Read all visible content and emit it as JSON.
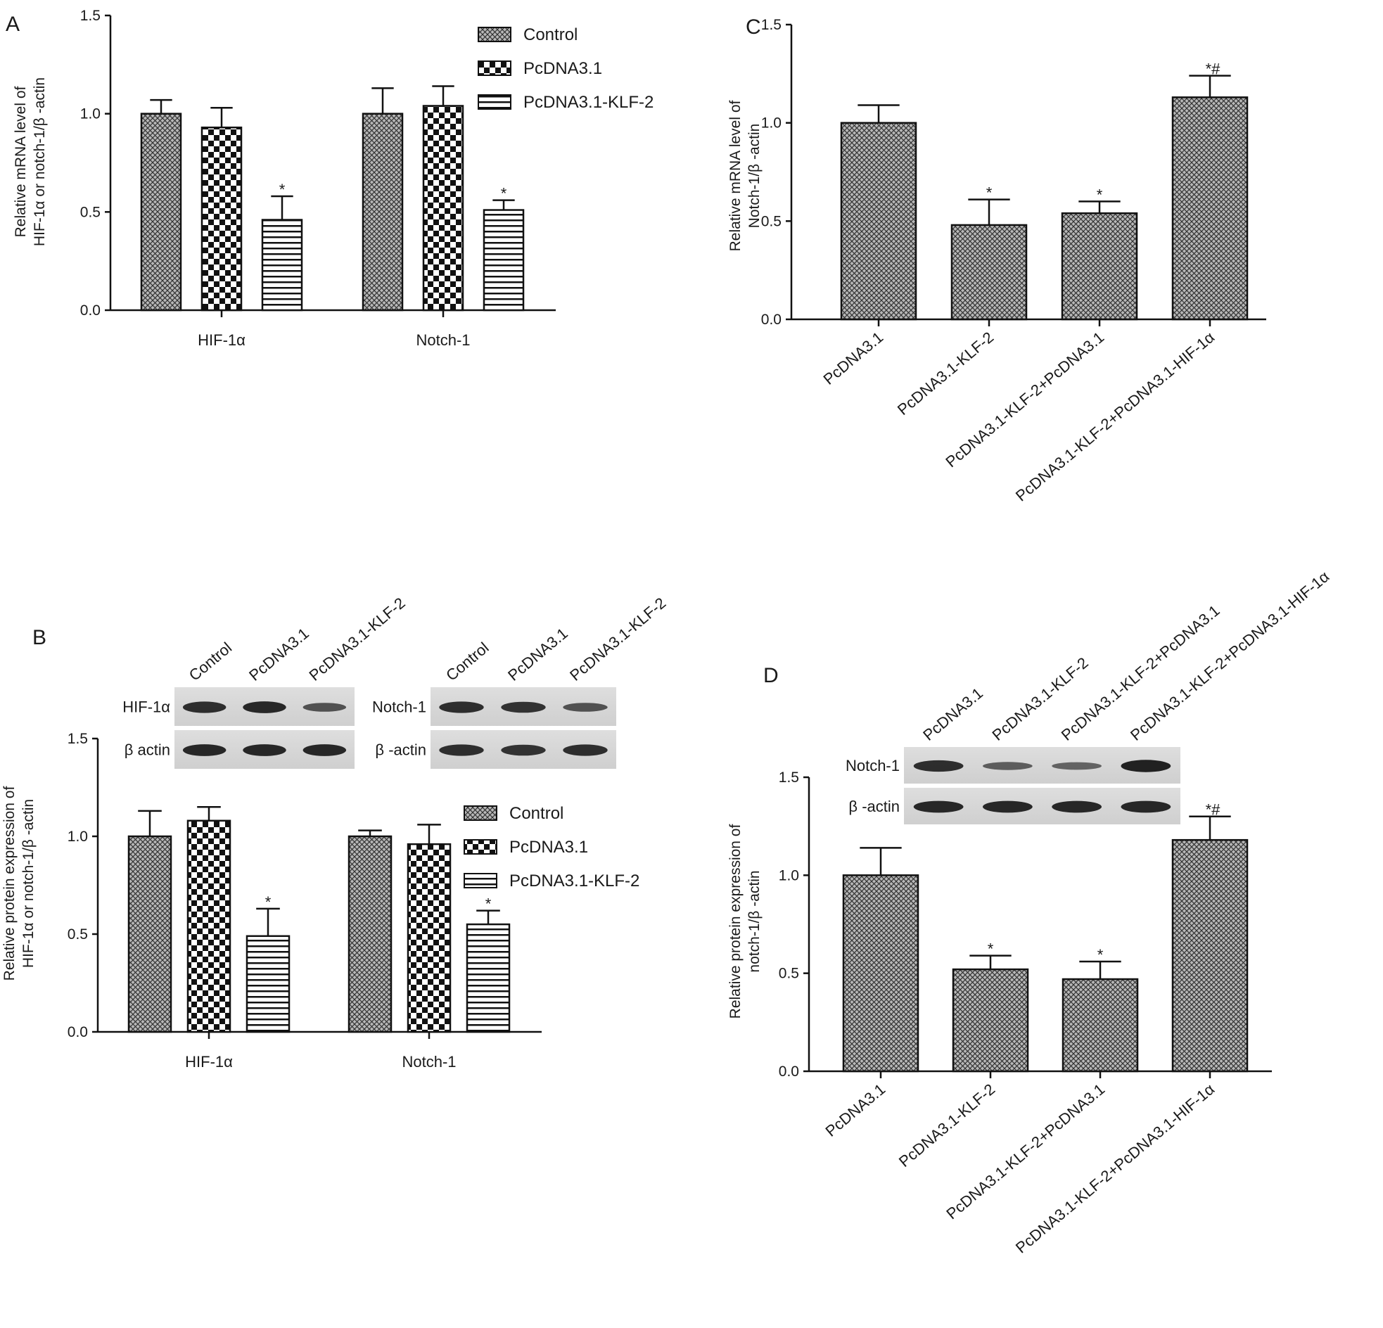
{
  "chart_data": [
    {
      "panel": "A",
      "type": "bar",
      "ylabel": [
        "Relative mRNA level of",
        "HIF-1α or notch-1/β -actin"
      ],
      "ylim": [
        0,
        1.5
      ],
      "yticks": [
        "0.0",
        "0.5",
        "1.0",
        "1.5"
      ],
      "categories": [
        "HIF-1α",
        "Notch-1"
      ],
      "legend_position": "top-right",
      "series": [
        {
          "name": "Control",
          "values": [
            1.0,
            1.0
          ],
          "errors": [
            0.07,
            0.13
          ],
          "marks": [
            "",
            ""
          ],
          "pattern": "fine"
        },
        {
          "name": "PcDNA3.1",
          "values": [
            0.93,
            1.04
          ],
          "errors": [
            0.1,
            0.1
          ],
          "marks": [
            "",
            ""
          ],
          "pattern": "checker"
        },
        {
          "name": "PcDNA3.1-KLF-2",
          "values": [
            0.46,
            0.51
          ],
          "errors": [
            0.12,
            0.05
          ],
          "marks": [
            "*",
            "*"
          ],
          "pattern": "hstripe"
        }
      ]
    },
    {
      "panel": "C",
      "type": "bar",
      "ylabel": [
        "Relative mRNA level of",
        "Notch-1/β -actin"
      ],
      "ylim": [
        0,
        1.5
      ],
      "yticks": [
        "0.0",
        "0.5",
        "1.0",
        "1.5"
      ],
      "categories": [
        "PcDNA3.1",
        "PcDNA3.1-KLF-2",
        "PcDNA3.1-KLF-2+PcDNA3.1",
        "PcDNA3.1-KLF-2+PcDNA3.1-HIF-1α"
      ],
      "values": [
        1.0,
        0.48,
        0.54,
        1.13
      ],
      "errors": [
        0.09,
        0.13,
        0.06,
        0.11
      ],
      "marks": [
        "",
        "*",
        "*",
        "*#"
      ]
    },
    {
      "panel": "B",
      "type": "bar",
      "ylabel": [
        "Relative protein expression of",
        "HIF-1α or notch-1/β -actin"
      ],
      "ylim": [
        0,
        1.5
      ],
      "yticks": [
        "0.0",
        "0.5",
        "1.0",
        "1.5"
      ],
      "categories": [
        "HIF-1α",
        "Notch-1"
      ],
      "legend_position": "right",
      "series": [
        {
          "name": "Control",
          "values": [
            1.0,
            1.0
          ],
          "errors": [
            0.13,
            0.03
          ],
          "marks": [
            "",
            ""
          ],
          "pattern": "fine"
        },
        {
          "name": "PcDNA3.1",
          "values": [
            1.08,
            0.96
          ],
          "errors": [
            0.07,
            0.1
          ],
          "marks": [
            "",
            ""
          ],
          "pattern": "checker"
        },
        {
          "name": "PcDNA3.1-KLF-2",
          "values": [
            0.49,
            0.55
          ],
          "errors": [
            0.14,
            0.07
          ],
          "marks": [
            "*",
            "*"
          ],
          "pattern": "hstripe"
        }
      ],
      "blots": [
        {
          "lanes": [
            "Control",
            "PcDNA3.1",
            "PcDNA3.1-KLF-2"
          ],
          "rows": [
            {
              "label": "HIF-1α",
              "intensity": [
                0.85,
                0.9,
                0.55
              ]
            },
            {
              "label": "β actin",
              "intensity": [
                0.9,
                0.9,
                0.9
              ]
            }
          ]
        },
        {
          "lanes": [
            "Control",
            "PcDNA3.1",
            "PcDNA3.1-KLF-2"
          ],
          "rows": [
            {
              "label": "Notch-1",
              "intensity": [
                0.85,
                0.8,
                0.55
              ]
            },
            {
              "label": "β -actin",
              "intensity": [
                0.85,
                0.8,
                0.85
              ]
            }
          ]
        }
      ]
    },
    {
      "panel": "D",
      "type": "bar",
      "ylabel": [
        "Relative protein expression of",
        "notch-1/β -actin"
      ],
      "ylim": [
        0,
        1.5
      ],
      "yticks": [
        "0.0",
        "0.5",
        "1.0",
        "1.5"
      ],
      "categories": [
        "PcDNA3.1",
        "PcDNA3.1-KLF-2",
        "PcDNA3.1-KLF-2+PcDNA3.1",
        "PcDNA3.1-KLF-2+PcDNA3.1-HIF-1α"
      ],
      "values": [
        1.0,
        0.52,
        0.47,
        1.18
      ],
      "errors": [
        0.14,
        0.07,
        0.09,
        0.12
      ],
      "marks": [
        "",
        "*",
        "*",
        "*#"
      ],
      "blots": [
        {
          "lanes": [
            "PcDNA3.1",
            "PcDNA3.1-KLF-2",
            "PcDNA3.1-KLF-2+PcDNA3.1",
            "PcDNA3.1-KLF-2+PcDNA3.1-HIF-1α"
          ],
          "rows": [
            {
              "label": "Notch-1",
              "intensity": [
                0.85,
                0.45,
                0.4,
                0.95
              ]
            },
            {
              "label": "β -actin",
              "intensity": [
                0.9,
                0.9,
                0.9,
                0.9
              ]
            }
          ]
        }
      ]
    }
  ]
}
